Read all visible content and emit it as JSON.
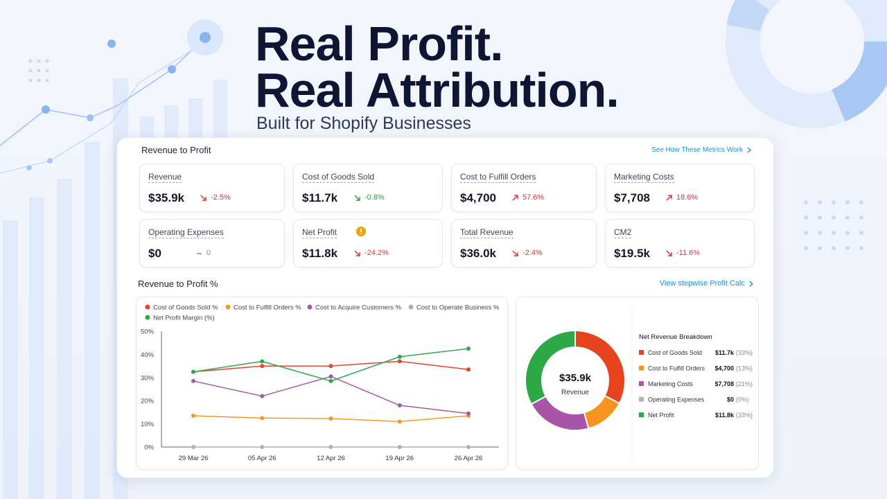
{
  "hero": {
    "title": [
      "Real Profit.",
      "Real Attribution."
    ],
    "subtitle": "Built for Shopify Businesses"
  },
  "panel": {
    "title": "Revenue to Profit",
    "link": "See How These Metrics Work"
  },
  "metrics": [
    {
      "label": "Revenue",
      "value": "$35.9k",
      "change": "-2.5%",
      "trend": "down",
      "color": "#e03131"
    },
    {
      "label": "Cost of Goods Sold",
      "value": "$11.7k",
      "change": "-0.8%",
      "trend": "down",
      "color": "#2f9e44"
    },
    {
      "label": "Cost to Fulfill Orders",
      "value": "$4,700",
      "change": "57.6%",
      "trend": "up",
      "color": "#e03131"
    },
    {
      "label": "Marketing Costs",
      "value": "$7,708",
      "change": "18.6%",
      "trend": "up",
      "color": "#e03131"
    },
    {
      "label": "Operating Expenses",
      "value": "$0",
      "change": "0",
      "trend": "flat",
      "color": "#868e96"
    },
    {
      "label": "Net Profit",
      "value": "$11.8k",
      "change": "-24.2%",
      "trend": "down",
      "color": "#e03131",
      "warning": true
    },
    {
      "label": "Total Revenue",
      "value": "$36.0k",
      "change": "-2.4%",
      "trend": "down",
      "color": "#e03131"
    },
    {
      "label": "CM2",
      "value": "$19.5k",
      "change": "-11.6%",
      "trend": "down",
      "color": "#e03131"
    }
  ],
  "section": {
    "title": "Revenue to Profit %",
    "link": "View stepwise Profit Calc"
  },
  "chart_data": [
    {
      "type": "line",
      "categories": [
        "29 Mar 26",
        "05 Apr 26",
        "12 Apr 26",
        "19 Apr 26",
        "26 Apr 26"
      ],
      "ylim": [
        0,
        50
      ],
      "yticks": [
        {
          "value": 0,
          "label": "0%"
        },
        {
          "value": 10,
          "label": "10%"
        },
        {
          "value": 20,
          "label": "20%"
        },
        {
          "value": 30,
          "label": "30%"
        },
        {
          "value": 40,
          "label": "40%"
        },
        {
          "value": 50,
          "label": "50%"
        }
      ],
      "grid": false,
      "series": [
        {
          "name": "Cost of Goods Sold %",
          "color": "#e5432a",
          "values": [
            32.5,
            35,
            35,
            37,
            33.5
          ]
        },
        {
          "name": "Cost to Fulfill Orders %",
          "color": "#f39a1e",
          "values": [
            13.5,
            12.5,
            12.3,
            11,
            13.5
          ]
        },
        {
          "name": "Cost to Acquire Customers %",
          "color": "#a658a6",
          "values": [
            28.5,
            22,
            30.5,
            18,
            14.5
          ]
        },
        {
          "name": "Cost to Operate Business %",
          "color": "#b0b0b0",
          "values": [
            0,
            0,
            0,
            0,
            0
          ]
        },
        {
          "name": "Net Profit Margin (%)",
          "color": "#2fa84a",
          "values": [
            32.5,
            37,
            28.5,
            39,
            42.5
          ]
        }
      ]
    },
    {
      "type": "donut",
      "title": "Net Revenue Breakdown",
      "center_value": "$35.9k",
      "center_label": "Revenue",
      "categories": [
        "Cost of Goods Sold",
        "Cost to Fulfill Orders",
        "Marketing Costs",
        "Operating Expenses",
        "Net Profit"
      ],
      "values": [
        11700,
        4700,
        7708,
        0,
        11800
      ],
      "value_labels": [
        "$11.7k",
        "$4,700",
        "$7,708",
        "$0",
        "$11.8k"
      ],
      "percent_labels": [
        "(33%)",
        "(13%)",
        "(21%)",
        "(0%)",
        "(33%)"
      ],
      "colors": [
        "#e8431f",
        "#f7941d",
        "#a855a8",
        "#b5b5b5",
        "#2ca847"
      ]
    }
  ]
}
